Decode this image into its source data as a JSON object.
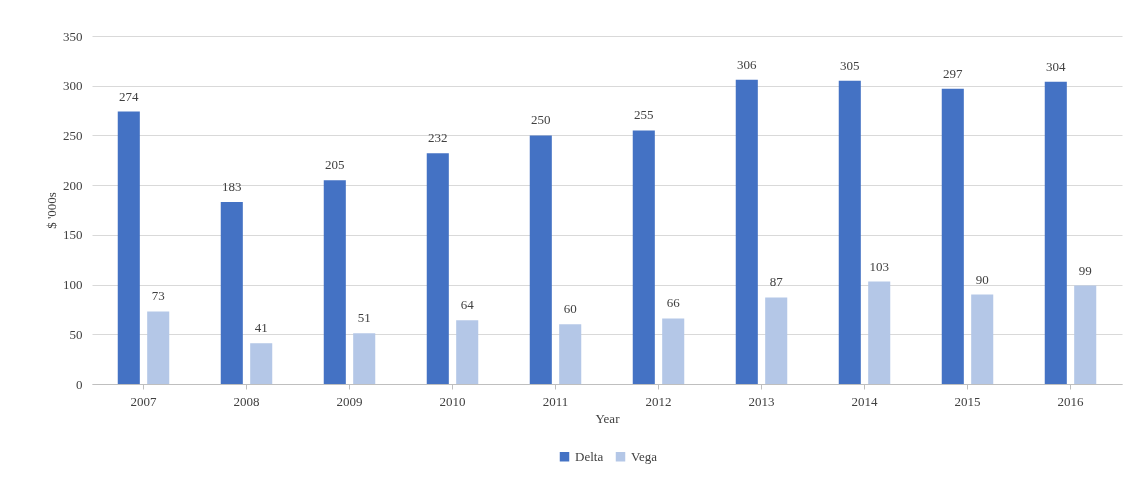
{
  "chart_data": {
    "type": "bar",
    "xlabel": "Year",
    "ylabel": "$ '000s",
    "categories": [
      "2007",
      "2008",
      "2009",
      "2010",
      "2011",
      "2012",
      "2013",
      "2014",
      "2015",
      "2016"
    ],
    "series": [
      {
        "name": "Delta",
        "color": "#4472c4",
        "values": [
          274,
          183,
          205,
          232,
          250,
          255,
          306,
          305,
          297,
          304
        ]
      },
      {
        "name": "Vega",
        "color": "#b4c7e7",
        "values": [
          73,
          41,
          51,
          64,
          60,
          66,
          87,
          103,
          90,
          99
        ]
      }
    ],
    "ylim": [
      0,
      350
    ],
    "yticks": [
      0,
      50,
      100,
      150,
      200,
      250,
      300,
      350
    ],
    "grid": "y",
    "legend": "bottom",
    "data_labels": true
  }
}
